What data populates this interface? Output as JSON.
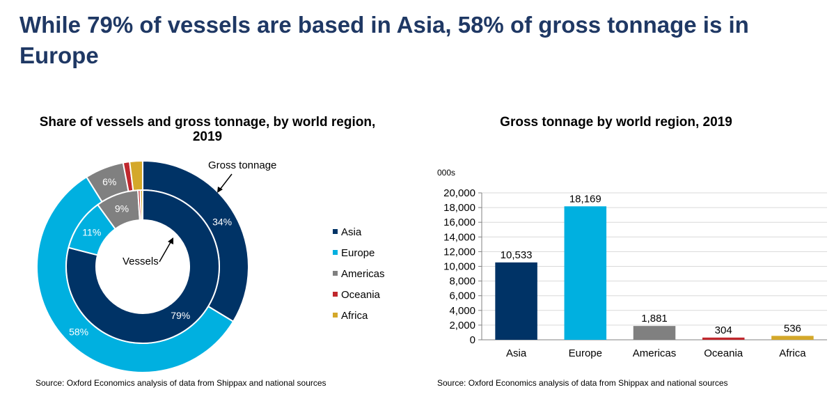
{
  "headline": "While 79% of vessels are based in Asia, 58% of gross tonnage is in Europe",
  "chart_data": [
    {
      "type": "donut",
      "title": "Share of vessels and gross tonnage, by world region, 2019",
      "categories": [
        "Asia",
        "Europe",
        "Americas",
        "Oceania",
        "Africa"
      ],
      "colors": [
        "#003366",
        "#00b0e0",
        "#808080",
        "#c0272d",
        "#d4a82a"
      ],
      "series": [
        {
          "name": "Gross tonnage",
          "values": [
            34,
            58,
            6,
            1,
            2
          ],
          "labels": [
            "34%",
            "58%",
            "6%",
            "",
            ""
          ]
        },
        {
          "name": "Vessels",
          "values": [
            79,
            11,
            9,
            0.5,
            0.5
          ],
          "labels": [
            "79%",
            "11%",
            "9%",
            "",
            ""
          ]
        }
      ],
      "legend": "right",
      "source": "Source: Oxford Economics analysis of data from Shippax and national sources"
    },
    {
      "type": "bar",
      "title": "Gross tonnage by world region, 2019",
      "unit": "000s",
      "categories": [
        "Asia",
        "Europe",
        "Americas",
        "Oceania",
        "Africa"
      ],
      "values": [
        10533,
        18169,
        1881,
        304,
        536
      ],
      "value_labels": [
        "10,533",
        "18,169",
        "1,881",
        "304",
        "536"
      ],
      "colors": [
        "#003366",
        "#00b0e0",
        "#808080",
        "#c0272d",
        "#d4a82a"
      ],
      "ylim": [
        0,
        20000
      ],
      "yticks": [
        "0",
        "2,000",
        "4,000",
        "6,000",
        "8,000",
        "10,000",
        "12,000",
        "14,000",
        "16,000",
        "18,000",
        "20,000"
      ],
      "grid": true,
      "source": "Source: Oxford Economics analysis of data from Shippax and national sources"
    }
  ]
}
